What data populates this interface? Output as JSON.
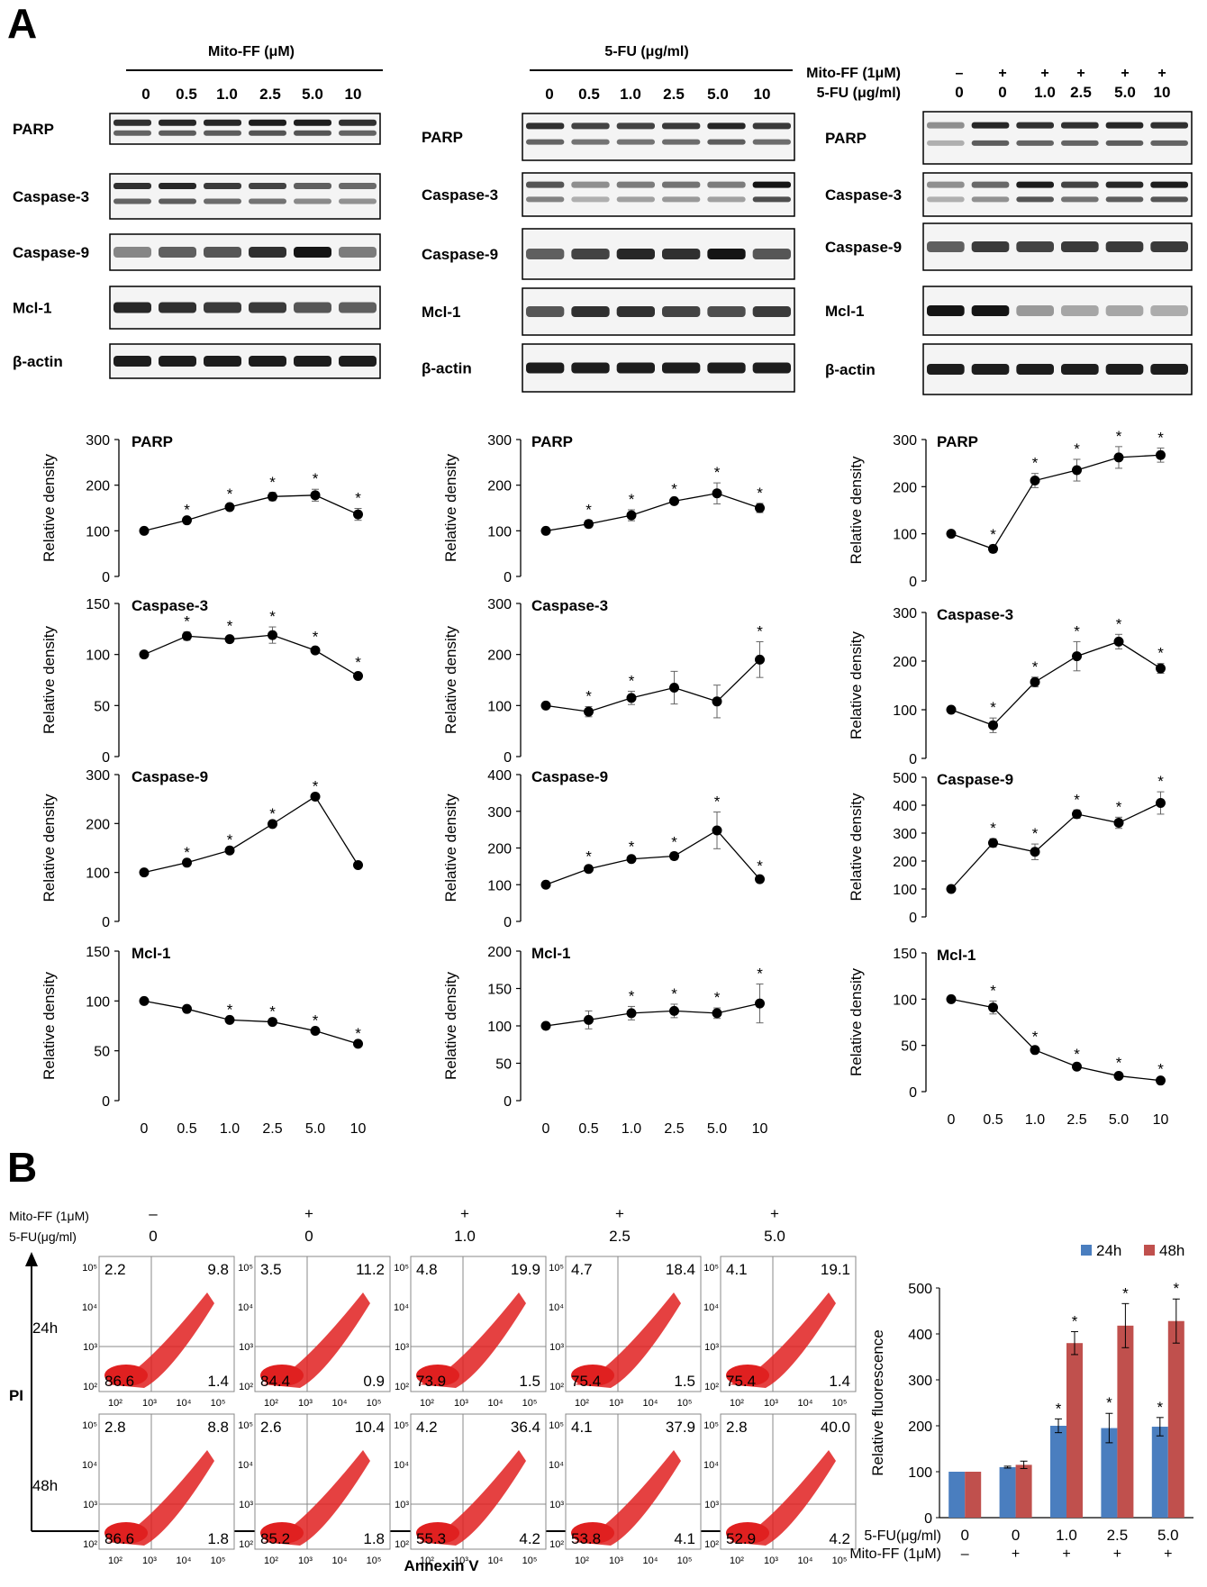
{
  "panel_a": {
    "letter": "A",
    "blot_groups": [
      {
        "header": "Mito-FF (μM)",
        "lanes": [
          "0",
          "0.5",
          "1.0",
          "2.5",
          "5.0",
          "10"
        ],
        "proteins": [
          "PARP",
          "Caspase-3",
          "Caspase-9",
          "Mcl-1",
          "β-actin"
        ]
      },
      {
        "header": "5-FU (μg/ml)",
        "lanes": [
          "0",
          "0.5",
          "1.0",
          "2.5",
          "5.0",
          "10"
        ],
        "proteins": [
          "PARP",
          "Caspase-3",
          "Caspase-9",
          "Mcl-1",
          "β-actin"
        ]
      },
      {
        "row1_label": "Mito-FF (1μM)",
        "row1": [
          "–",
          "+",
          "+",
          "+",
          "+",
          "+"
        ],
        "row2_label": "5-FU (μg/ml)",
        "row2": [
          "0",
          "0",
          "1.0",
          "2.5",
          "5.0",
          "10"
        ],
        "proteins": [
          "PARP",
          "Caspase-3",
          "Caspase-9",
          "Mcl-1",
          "β-actin"
        ]
      }
    ],
    "ylabel": "Relative density",
    "x_ticks": [
      "0",
      "0.5",
      "1.0",
      "2.5",
      "5.0",
      "10"
    ]
  },
  "chart_data": [
    {
      "type": "line",
      "id": "c0-0",
      "title": "PARP",
      "xlabel": "",
      "ylabel": "Relative density",
      "categories": [
        "0",
        "0.5",
        "1.0",
        "2.5",
        "5.0",
        "10"
      ],
      "values": [
        100,
        123,
        152,
        175,
        178,
        136
      ],
      "errors": [
        0,
        0,
        6,
        9,
        13,
        13
      ],
      "star": [
        false,
        true,
        true,
        true,
        true,
        true
      ],
      "ylim": [
        0,
        300
      ],
      "yticks": [
        0,
        100,
        200,
        300
      ]
    },
    {
      "type": "line",
      "id": "c0-1",
      "title": "Caspase-3",
      "xlabel": "",
      "ylabel": "Relative density",
      "categories": [
        "0",
        "0.5",
        "1.0",
        "2.5",
        "5.0",
        "10"
      ],
      "values": [
        100,
        118,
        115,
        119,
        104,
        79
      ],
      "errors": [
        0,
        4,
        3,
        8,
        3,
        3
      ],
      "star": [
        false,
        true,
        true,
        true,
        true,
        true
      ],
      "ylim": [
        0,
        150
      ],
      "yticks": [
        0,
        50,
        100,
        150
      ]
    },
    {
      "type": "line",
      "id": "c0-2",
      "title": "Caspase-9",
      "xlabel": "",
      "ylabel": "Relative density",
      "categories": [
        "0",
        "0.5",
        "1.0",
        "2.5",
        "5.0",
        "10"
      ],
      "values": [
        100,
        120,
        145,
        199,
        255,
        115
      ],
      "errors": [
        0,
        0,
        0,
        0,
        0,
        0
      ],
      "star": [
        false,
        true,
        true,
        true,
        true,
        false
      ],
      "ylim": [
        0,
        300
      ],
      "yticks": [
        0,
        100,
        200,
        300
      ]
    },
    {
      "type": "line",
      "id": "c0-3",
      "title": "Mcl-1",
      "xlabel": "",
      "ylabel": "Relative density",
      "categories": [
        "0",
        "0.5",
        "1.0",
        "2.5",
        "5.0",
        "10"
      ],
      "values": [
        100,
        92,
        81,
        79,
        70,
        57
      ],
      "errors": [
        0,
        0,
        0,
        0,
        0,
        0
      ],
      "star": [
        false,
        false,
        true,
        true,
        true,
        true
      ],
      "ylim": [
        0,
        150
      ],
      "yticks": [
        0,
        50,
        100,
        150
      ]
    },
    {
      "type": "line",
      "id": "c1-0",
      "title": "PARP",
      "xlabel": "",
      "ylabel": "Relative density",
      "categories": [
        "0",
        "0.5",
        "1.0",
        "2.5",
        "5.0",
        "10"
      ],
      "values": [
        100,
        115,
        134,
        165,
        182,
        150
      ],
      "errors": [
        0,
        8,
        12,
        4,
        23,
        10
      ],
      "star": [
        false,
        true,
        true,
        true,
        true,
        true
      ],
      "ylim": [
        0,
        300
      ],
      "yticks": [
        0,
        100,
        200,
        300
      ]
    },
    {
      "type": "line",
      "id": "c1-1",
      "title": "Caspase-3",
      "xlabel": "",
      "ylabel": "Relative density",
      "categories": [
        "0",
        "0.5",
        "1.0",
        "2.5",
        "5.0",
        "10"
      ],
      "values": [
        100,
        88,
        115,
        135,
        108,
        190
      ],
      "errors": [
        0,
        10,
        13,
        32,
        32,
        35
      ],
      "star": [
        false,
        true,
        true,
        false,
        false,
        true
      ],
      "ylim": [
        0,
        300
      ],
      "yticks": [
        0,
        100,
        200,
        300
      ]
    },
    {
      "type": "line",
      "id": "c1-2",
      "title": "Caspase-9",
      "xlabel": "",
      "ylabel": "Relative density",
      "categories": [
        "0",
        "0.5",
        "1.0",
        "2.5",
        "5.0",
        "10"
      ],
      "values": [
        100,
        143,
        170,
        178,
        248,
        115
      ],
      "errors": [
        0,
        6,
        6,
        10,
        50,
        8
      ],
      "star": [
        false,
        true,
        true,
        true,
        true,
        true
      ],
      "ylim": [
        0,
        400
      ],
      "yticks": [
        0,
        100,
        200,
        300,
        400
      ]
    },
    {
      "type": "line",
      "id": "c1-3",
      "title": "Mcl-1",
      "xlabel": "",
      "ylabel": "Relative density",
      "categories": [
        "0",
        "0.5",
        "1.0",
        "2.5",
        "5.0",
        "10"
      ],
      "values": [
        100,
        108,
        117,
        120,
        117,
        130
      ],
      "errors": [
        0,
        12,
        9,
        9,
        7,
        26
      ],
      "star": [
        false,
        false,
        true,
        true,
        true,
        true
      ],
      "ylim": [
        0,
        200
      ],
      "yticks": [
        0,
        50,
        100,
        150,
        200
      ]
    },
    {
      "type": "line",
      "id": "c2-0",
      "title": "PARP",
      "xlabel": "",
      "ylabel": "Relative density",
      "categories": [
        "0",
        "0.5",
        "1.0",
        "2.5",
        "5.0",
        "10"
      ],
      "values": [
        100,
        68,
        213,
        235,
        262,
        267
      ],
      "errors": [
        0,
        8,
        15,
        23,
        23,
        15
      ],
      "star": [
        false,
        true,
        true,
        true,
        true,
        true
      ],
      "ylim": [
        0,
        300
      ],
      "yticks": [
        0,
        100,
        200,
        300
      ]
    },
    {
      "type": "line",
      "id": "c2-1",
      "title": "Caspase-3",
      "xlabel": "",
      "ylabel": "Relative density",
      "categories": [
        "0",
        "0.5",
        "1.0",
        "2.5",
        "5.0",
        "10"
      ],
      "values": [
        100,
        68,
        157,
        210,
        240,
        185
      ],
      "errors": [
        0,
        15,
        10,
        30,
        15,
        10
      ],
      "star": [
        false,
        true,
        true,
        true,
        true,
        true
      ],
      "ylim": [
        0,
        300
      ],
      "yticks": [
        0,
        100,
        200,
        300
      ]
    },
    {
      "type": "line",
      "id": "c2-2",
      "title": "Caspase-9",
      "xlabel": "",
      "ylabel": "Relative density",
      "categories": [
        "0",
        "0.5",
        "1.0",
        "2.5",
        "5.0",
        "10"
      ],
      "values": [
        100,
        265,
        233,
        368,
        337,
        408
      ],
      "errors": [
        0,
        15,
        28,
        15,
        20,
        40
      ],
      "star": [
        false,
        true,
        true,
        true,
        true,
        true
      ],
      "ylim": [
        0,
        500
      ],
      "yticks": [
        0,
        100,
        200,
        300,
        400,
        500
      ]
    },
    {
      "type": "line",
      "id": "c2-3",
      "title": "Mcl-1",
      "xlabel": "",
      "ylabel": "Relative density",
      "categories": [
        "0",
        "0.5",
        "1.0",
        "2.5",
        "5.0",
        "10"
      ],
      "values": [
        100,
        91,
        45,
        27,
        17,
        12
      ],
      "errors": [
        0,
        7,
        3,
        2,
        3,
        1
      ],
      "star": [
        false,
        true,
        true,
        true,
        true,
        true
      ],
      "ylim": [
        0,
        150
      ],
      "yticks": [
        0,
        50,
        100,
        150
      ]
    },
    {
      "type": "bar",
      "id": "bar-fluor",
      "title": "",
      "xlabel": "",
      "ylabel": "Relative fluorescence",
      "categories": [
        "0",
        "0",
        "1.0",
        "2.5",
        "5.0"
      ],
      "series": [
        {
          "name": "24h",
          "color": "#4a7ebf",
          "values": [
            100,
            110,
            200,
            195,
            198
          ],
          "errors": [
            0,
            2,
            15,
            32,
            20
          ],
          "star": [
            false,
            false,
            true,
            true,
            true
          ]
        },
        {
          "name": "48h",
          "color": "#c0504d",
          "values": [
            100,
            115,
            380,
            418,
            428
          ],
          "errors": [
            0,
            8,
            25,
            48,
            48
          ],
          "star": [
            false,
            false,
            true,
            true,
            true
          ]
        }
      ],
      "ylim": [
        0,
        500
      ],
      "yticks": [
        0,
        100,
        200,
        300,
        400,
        500
      ],
      "row1_label": "5-FU(μg/ml)",
      "row1": [
        "0",
        "0",
        "1.0",
        "2.5",
        "5.0"
      ],
      "row2_label": "Mito-FF (1μM)",
      "row2": [
        "–",
        "+",
        "+",
        "+",
        "+"
      ]
    }
  ],
  "panel_b": {
    "letter": "B",
    "mito_label": "Mito-FF (1μM)",
    "mito_row": [
      "–",
      "+",
      "+",
      "+",
      "+"
    ],
    "fu_label": "5-FU(μg/ml)",
    "fu_row": [
      "0",
      "0",
      "1.0",
      "2.5",
      "5.0"
    ],
    "rows": [
      "24h",
      "48h"
    ],
    "y_axis": "PI",
    "x_axis": "Annexin V",
    "decades": [
      "10²",
      "10³",
      "10⁴",
      "10⁵"
    ],
    "quadrants": {
      "24h": [
        [
          "2.2",
          "9.8",
          "86.6",
          "1.4"
        ],
        [
          "3.5",
          "11.2",
          "84.4",
          "0.9"
        ],
        [
          "4.8",
          "19.9",
          "73.9",
          "1.5"
        ],
        [
          "4.7",
          "18.4",
          "75.4",
          "1.5"
        ],
        [
          "4.1",
          "19.1",
          "75.4",
          "1.4"
        ]
      ],
      "48h": [
        [
          "2.8",
          "8.8",
          "86.6",
          "1.8"
        ],
        [
          "2.6",
          "10.4",
          "85.2",
          "1.8"
        ],
        [
          "4.2",
          "36.4",
          "55.3",
          "4.2"
        ],
        [
          "4.1",
          "37.9",
          "53.8",
          "4.1"
        ],
        [
          "2.8",
          "40.0",
          "52.9",
          "4.2"
        ]
      ]
    }
  }
}
